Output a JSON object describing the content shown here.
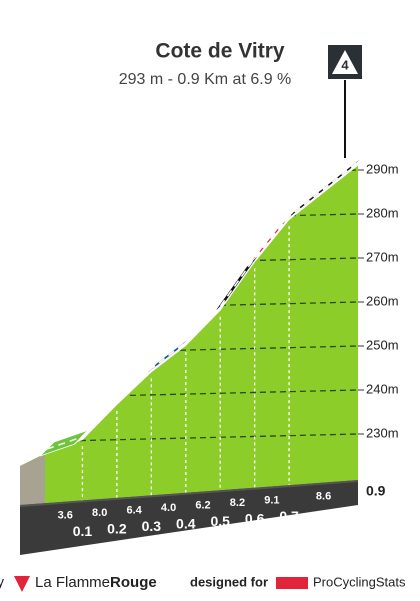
{
  "chart_data": {
    "type": "area",
    "title": "Cote de Vitry",
    "subtitle": "293 m - 0.9 Km at 6.9 %",
    "category": "4",
    "x": [
      0,
      0.1,
      0.2,
      0.3,
      0.4,
      0.5,
      0.6,
      0.7,
      0.9
    ],
    "values": [
      225.9,
      228.6,
      236.6,
      244,
      250,
      258,
      269,
      278.6,
      291
    ],
    "gradients": {
      "values": [
        3.6,
        8.0,
        6.4,
        4.0,
        6.2,
        8.2,
        9.1,
        8.6
      ],
      "value_labels": [
        "3.6",
        "8.0",
        "6.4",
        "4.0",
        "6.2",
        "8.2",
        "9.1",
        "8.6"
      ],
      "colors": [
        "#6cc53a",
        "#e2243b",
        "#e2243b",
        "#1f5b86",
        "#111111",
        "#111111",
        "#e2243b",
        "#111111"
      ]
    },
    "xlim": [
      0,
      0.9
    ],
    "ylim": [
      215,
      295
    ],
    "yticks": [
      {
        "value": 230,
        "label": "230m"
      },
      {
        "value": 240,
        "label": "240m"
      },
      {
        "value": 250,
        "label": "250m"
      },
      {
        "value": 260,
        "label": "260m"
      },
      {
        "value": 270,
        "label": "270m"
      },
      {
        "value": 280,
        "label": "280m"
      },
      {
        "value": 290,
        "label": "290m"
      }
    ],
    "grid": true,
    "area_color": "#8ccd2a",
    "footer": {
      "left": "y",
      "brand": "La Flamme",
      "brand_bold": "Rouge",
      "designed": "designed for",
      "pcs": "ProCyclingStats"
    }
  }
}
